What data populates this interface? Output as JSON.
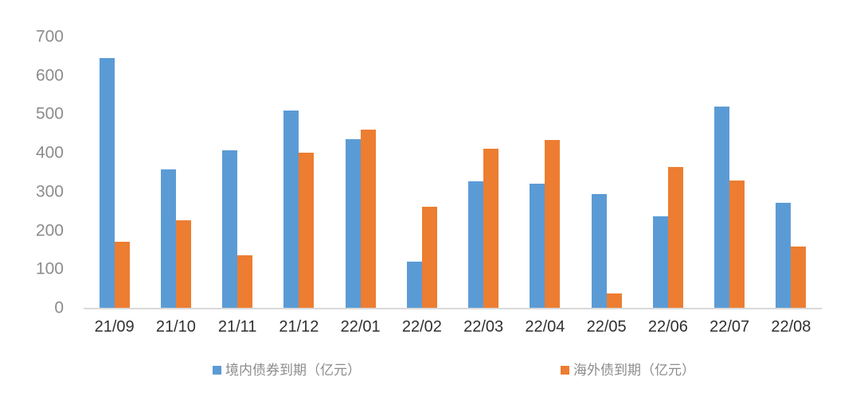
{
  "chart_data": {
    "type": "bar",
    "title": "",
    "xlabel": "",
    "ylabel": "",
    "categories": [
      "21/09",
      "21/10",
      "21/11",
      "21/12",
      "22/01",
      "22/02",
      "22/03",
      "22/04",
      "22/05",
      "22/06",
      "22/07",
      "22/08"
    ],
    "series": [
      {
        "name": "境内债券到期（亿元）",
        "color": "#5b9bd5",
        "values": [
          645,
          357,
          407,
          510,
          436,
          120,
          327,
          320,
          294,
          237,
          520,
          271
        ]
      },
      {
        "name": "海外债到期（亿元）",
        "color": "#ed7d31",
        "values": [
          170,
          225,
          136,
          400,
          460,
          260,
          410,
          433,
          36,
          364,
          328,
          158
        ]
      }
    ],
    "ylim": [
      0,
      700
    ],
    "yticks": [
      700,
      600,
      500,
      400,
      300,
      200,
      100,
      0
    ],
    "grid": false,
    "legend_position": "bottom"
  },
  "colors": {
    "background": "#ffffff",
    "axis_line": "#d9d9d9",
    "y_tick_text": "#8c8c8c",
    "x_tick_text": "#303030",
    "legend_text": "#8c8c8c"
  }
}
